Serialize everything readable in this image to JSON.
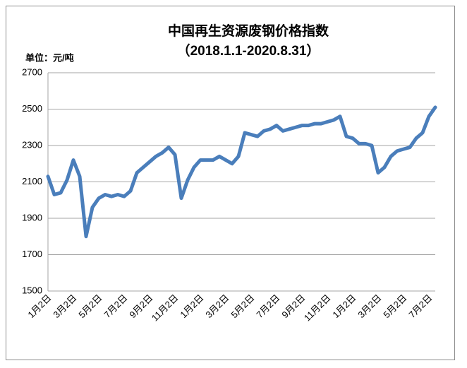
{
  "chart_data": {
    "type": "line",
    "title": "中国再生资源废钢价格指数",
    "subtitle": "（2018.1.1-2020.8.31）",
    "y_axis_label": "单位：元/吨",
    "categories": [
      "1月2日",
      null,
      null,
      null,
      "3月2日",
      null,
      null,
      null,
      "5月2日",
      null,
      null,
      null,
      "7月2日",
      null,
      null,
      null,
      "9月2日",
      null,
      null,
      null,
      "11月2日",
      null,
      null,
      null,
      "1月2日",
      null,
      null,
      null,
      "3月2日",
      null,
      null,
      null,
      "5月2日",
      null,
      null,
      null,
      "7月2日",
      null,
      null,
      null,
      "9月2日",
      null,
      null,
      null,
      "11月2日",
      null,
      null,
      null,
      "1月2日",
      null,
      null,
      null,
      "3月2日",
      null,
      null,
      null,
      "5月2日",
      null,
      null,
      null,
      "7月2日",
      null
    ],
    "values": [
      2130,
      2030,
      2040,
      2110,
      2220,
      2130,
      1800,
      1960,
      2010,
      2030,
      2020,
      2030,
      2020,
      2050,
      2150,
      2180,
      2210,
      2240,
      2260,
      2290,
      2250,
      2010,
      2110,
      2180,
      2220,
      2220,
      2220,
      2240,
      2220,
      2200,
      2240,
      2370,
      2360,
      2350,
      2380,
      2390,
      2410,
      2380,
      2390,
      2400,
      2410,
      2410,
      2420,
      2420,
      2430,
      2440,
      2460,
      2350,
      2340,
      2310,
      2310,
      2300,
      2150,
      2180,
      2240,
      2270,
      2280,
      2290,
      2340,
      2370,
      2460,
      2510
    ],
    "color": "#4a7ebb",
    "ylim": [
      1500,
      2700
    ],
    "yticks": [
      1500,
      1700,
      1900,
      2100,
      2300,
      2500,
      2700
    ],
    "grid": true
  }
}
